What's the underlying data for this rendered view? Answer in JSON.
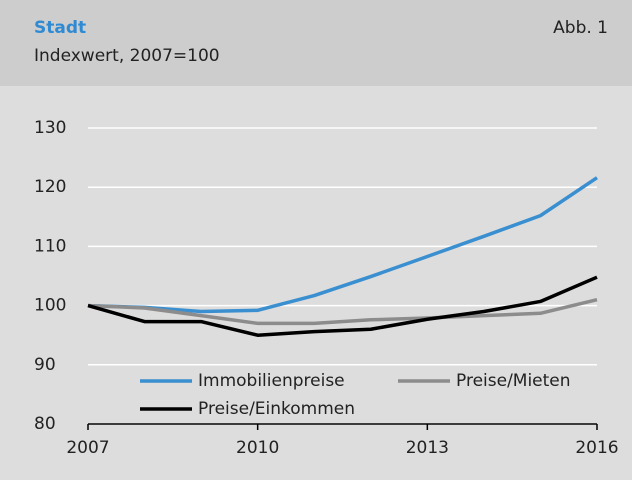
{
  "chart_data": {
    "type": "line",
    "title": "Stadt",
    "subtitle": "Indexwert, 2007=100",
    "figure_label": "Abb. 1",
    "x": [
      2007,
      2008,
      2009,
      2010,
      2011,
      2012,
      2013,
      2014,
      2015,
      2016
    ],
    "series": [
      {
        "name": "Immobilienpreise",
        "color": "#3a8fd0",
        "values": [
          100,
          99.7,
          99.0,
          99.2,
          101.7,
          104.9,
          108.3,
          111.7,
          115.2,
          121.6
        ]
      },
      {
        "name": "Preise/Mieten",
        "color": "#8c8c8c",
        "values": [
          100,
          99.6,
          98.3,
          97.0,
          97.0,
          97.6,
          97.9,
          98.3,
          98.7,
          101.0
        ]
      },
      {
        "name": "Preise/Einkommen",
        "color": "#000000",
        "values": [
          100,
          97.3,
          97.3,
          95.0,
          95.6,
          96.0,
          97.7,
          99.0,
          100.7,
          104.8
        ]
      }
    ],
    "xlim": [
      2007,
      2016
    ],
    "xticks": [
      2007,
      2010,
      2013,
      2016
    ],
    "ylim": [
      80,
      130
    ],
    "yticks": [
      80,
      90,
      100,
      110,
      120,
      130
    ],
    "grid": true,
    "legend": "lower center"
  }
}
